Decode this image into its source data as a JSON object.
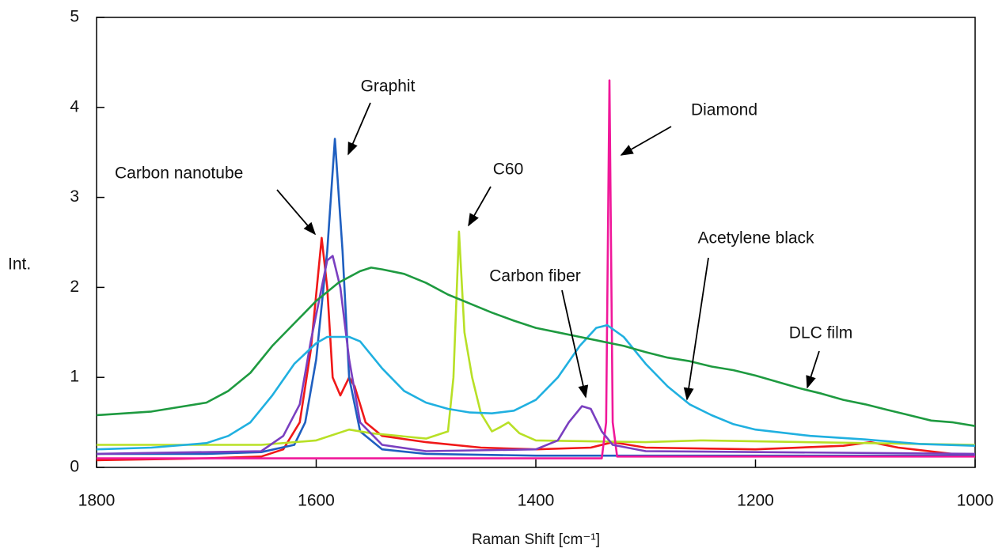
{
  "chart_data": {
    "type": "line",
    "x_label": "Raman Shift [cm⁻¹]",
    "y_label": "Int.",
    "xlim": [
      1800,
      1000
    ],
    "ylim": [
      0,
      5
    ],
    "xticks": [
      1800,
      1600,
      1400,
      1200,
      1000
    ],
    "yticks": [
      0,
      1,
      2,
      3,
      4,
      5
    ],
    "series": [
      {
        "name": "Carbon nanotube",
        "color": "#f01818",
        "x": [
          1800,
          1700,
          1650,
          1630,
          1615,
          1605,
          1595,
          1590,
          1585,
          1578,
          1570,
          1565,
          1555,
          1540,
          1500,
          1450,
          1400,
          1350,
          1330,
          1300,
          1200,
          1120,
          1095,
          1070,
          1000
        ],
        "values": [
          0.08,
          0.1,
          0.12,
          0.2,
          0.5,
          1.3,
          2.55,
          2.0,
          1.0,
          0.8,
          1.0,
          0.9,
          0.5,
          0.35,
          0.28,
          0.22,
          0.2,
          0.22,
          0.28,
          0.22,
          0.2,
          0.24,
          0.28,
          0.22,
          0.12
        ]
      },
      {
        "name": "Graphit",
        "color": "#1f5fc0",
        "x": [
          1800,
          1700,
          1650,
          1620,
          1610,
          1600,
          1590,
          1583,
          1576,
          1570,
          1560,
          1540,
          1500,
          1400,
          1200,
          1000
        ],
        "values": [
          0.15,
          0.15,
          0.17,
          0.25,
          0.5,
          1.2,
          2.4,
          3.65,
          2.4,
          1.0,
          0.4,
          0.2,
          0.15,
          0.13,
          0.13,
          0.13
        ]
      },
      {
        "name": "C60",
        "color": "#b8e026",
        "x": [
          1800,
          1650,
          1600,
          1570,
          1550,
          1500,
          1480,
          1475,
          1470,
          1465,
          1458,
          1450,
          1440,
          1432,
          1425,
          1415,
          1400,
          1300,
          1250,
          1000
        ],
        "values": [
          0.25,
          0.25,
          0.3,
          0.42,
          0.38,
          0.32,
          0.4,
          1.0,
          2.62,
          1.5,
          1.0,
          0.6,
          0.4,
          0.45,
          0.5,
          0.38,
          0.3,
          0.28,
          0.3,
          0.25
        ]
      },
      {
        "name": "Diamond",
        "color": "#f0189a",
        "x": [
          1800,
          1340,
          1336,
          1333,
          1330,
          1326,
          1000
        ],
        "values": [
          0.1,
          0.1,
          0.5,
          4.3,
          0.5,
          0.12,
          0.12
        ]
      },
      {
        "name": "Carbon fiber",
        "color": "#7a3fc0",
        "x": [
          1800,
          1650,
          1630,
          1615,
          1605,
          1590,
          1585,
          1578,
          1570,
          1560,
          1540,
          1500,
          1400,
          1380,
          1370,
          1358,
          1350,
          1340,
          1330,
          1300,
          1000
        ],
        "values": [
          0.15,
          0.18,
          0.35,
          0.7,
          1.4,
          2.3,
          2.35,
          2.0,
          1.2,
          0.5,
          0.25,
          0.18,
          0.2,
          0.3,
          0.5,
          0.68,
          0.65,
          0.4,
          0.25,
          0.18,
          0.15
        ]
      },
      {
        "name": "Acetylene black",
        "color": "#20b0e0",
        "x": [
          1800,
          1750,
          1700,
          1680,
          1660,
          1640,
          1620,
          1600,
          1590,
          1570,
          1560,
          1540,
          1520,
          1500,
          1480,
          1460,
          1440,
          1420,
          1400,
          1380,
          1360,
          1345,
          1335,
          1320,
          1300,
          1280,
          1260,
          1240,
          1220,
          1200,
          1150,
          1100,
          1050,
          1000
        ],
        "values": [
          0.2,
          0.22,
          0.27,
          0.35,
          0.5,
          0.8,
          1.15,
          1.38,
          1.45,
          1.45,
          1.4,
          1.1,
          0.85,
          0.72,
          0.65,
          0.61,
          0.6,
          0.63,
          0.75,
          1.0,
          1.35,
          1.55,
          1.58,
          1.45,
          1.15,
          0.9,
          0.7,
          0.58,
          0.48,
          0.42,
          0.35,
          0.31,
          0.26,
          0.24
        ]
      },
      {
        "name": "DLC film",
        "color": "#1e9a40",
        "x": [
          1800,
          1750,
          1700,
          1680,
          1660,
          1640,
          1620,
          1600,
          1580,
          1560,
          1550,
          1540,
          1520,
          1500,
          1480,
          1460,
          1440,
          1420,
          1400,
          1380,
          1360,
          1340,
          1320,
          1300,
          1280,
          1260,
          1240,
          1220,
          1200,
          1180,
          1160,
          1140,
          1120,
          1100,
          1080,
          1060,
          1040,
          1020,
          1000
        ],
        "values": [
          0.58,
          0.62,
          0.72,
          0.85,
          1.05,
          1.35,
          1.6,
          1.85,
          2.05,
          2.18,
          2.22,
          2.2,
          2.15,
          2.05,
          1.92,
          1.82,
          1.72,
          1.63,
          1.55,
          1.5,
          1.45,
          1.4,
          1.35,
          1.28,
          1.22,
          1.18,
          1.12,
          1.08,
          1.02,
          0.95,
          0.88,
          0.82,
          0.75,
          0.7,
          0.64,
          0.58,
          0.52,
          0.5,
          0.46
        ]
      }
    ]
  }
}
